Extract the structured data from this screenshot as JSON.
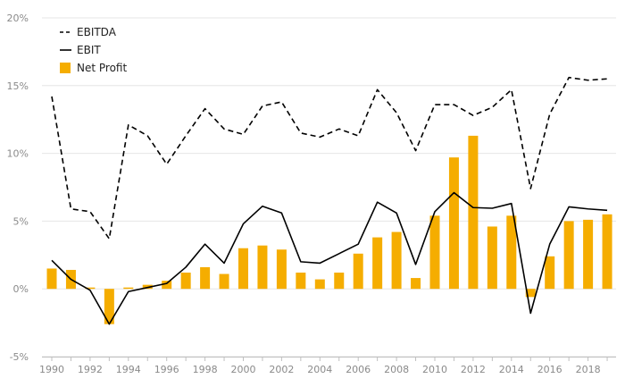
{
  "chart_data": {
    "type": "bar",
    "title": "",
    "xlabel": "",
    "ylabel": "",
    "ylim": [
      -5,
      20
    ],
    "grid": true,
    "legend_position": "top-left",
    "colors": {
      "ebitda": "#000000",
      "ebit": "#000000",
      "net_profit": "#f5ad00",
      "grid": "#e6e6e6",
      "axis": "#bfbfbf"
    },
    "y_ticks": [
      {
        "value": -5,
        "label": "-5%"
      },
      {
        "value": 0,
        "label": "0%"
      },
      {
        "value": 5,
        "label": "5%"
      },
      {
        "value": 10,
        "label": "10%"
      },
      {
        "value": 15,
        "label": "15%"
      },
      {
        "value": 20,
        "label": "20%"
      }
    ],
    "x_tick_labels": [
      "1990",
      "1992",
      "1994",
      "1996",
      "1998",
      "2000",
      "2002",
      "2004",
      "2006",
      "2008",
      "2010",
      "2012",
      "2014",
      "2016",
      "2018"
    ],
    "categories": [
      1990,
      1991,
      1992,
      1993,
      1994,
      1995,
      1996,
      1997,
      1998,
      1999,
      2000,
      2001,
      2002,
      2003,
      2004,
      2005,
      2006,
      2007,
      2008,
      2009,
      2010,
      2011,
      2012,
      2013,
      2014,
      2015,
      2016,
      2017,
      2018,
      2019
    ],
    "series": [
      {
        "name": "EBITDA",
        "kind": "line",
        "line_style": "dashed",
        "values": [
          14.2,
          5.9,
          5.7,
          3.7,
          12.1,
          11.3,
          9.2,
          11.3,
          13.3,
          11.8,
          11.4,
          13.5,
          13.8,
          11.5,
          11.2,
          11.8,
          11.3,
          14.7,
          13.0,
          10.2,
          13.6,
          13.6,
          12.8,
          13.4,
          14.7,
          7.4,
          12.9,
          15.6,
          15.4,
          15.5
        ]
      },
      {
        "name": "EBIT",
        "kind": "line",
        "line_style": "solid",
        "values": [
          2.1,
          0.7,
          -0.1,
          -2.6,
          -0.2,
          0.1,
          0.4,
          1.6,
          3.3,
          1.9,
          4.8,
          6.1,
          5.6,
          2.0,
          1.9,
          2.6,
          3.3,
          6.4,
          5.6,
          1.8,
          5.7,
          7.1,
          6.0,
          5.95,
          6.3,
          -1.8,
          3.3,
          6.05,
          5.9,
          5.8
        ]
      },
      {
        "name": "Net Profit",
        "kind": "bar",
        "values": [
          1.5,
          1.4,
          0.1,
          -2.6,
          0.1,
          0.3,
          0.6,
          1.2,
          1.6,
          1.1,
          3.0,
          3.2,
          2.9,
          1.2,
          0.7,
          1.2,
          2.6,
          3.8,
          4.2,
          0.8,
          5.4,
          9.7,
          11.3,
          4.6,
          5.4,
          -0.6,
          2.4,
          5.0,
          5.1,
          5.5
        ]
      }
    ]
  }
}
